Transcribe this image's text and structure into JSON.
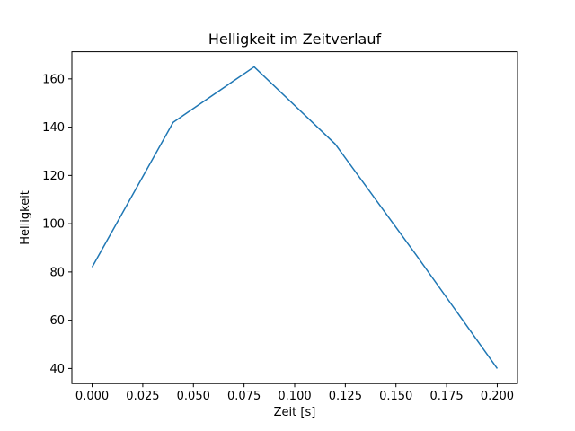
{
  "chart_data": {
    "type": "line",
    "title": "Helligkeit im Zeitverlauf",
    "xlabel": "Zeit [s]",
    "ylabel": "Helligkeit",
    "x": [
      0.0,
      0.04,
      0.08,
      0.12,
      0.16,
      0.2
    ],
    "series": [
      {
        "name": "Helligkeit",
        "values": [
          82,
          142,
          165,
          133,
          87,
          40
        ]
      }
    ],
    "xlim": [
      -0.01,
      0.21
    ],
    "ylim": [
      33.75,
      171.25
    ],
    "xticks": {
      "values": [
        0.0,
        0.025,
        0.05,
        0.075,
        0.1,
        0.125,
        0.15,
        0.175,
        0.2
      ],
      "labels": [
        "0.000",
        "0.025",
        "0.050",
        "0.075",
        "0.100",
        "0.125",
        "0.150",
        "0.175",
        "0.200"
      ]
    },
    "yticks": {
      "values": [
        40,
        60,
        80,
        100,
        120,
        140,
        160
      ],
      "labels": [
        "40",
        "60",
        "80",
        "100",
        "120",
        "140",
        "160"
      ]
    },
    "grid": false,
    "legend": "none",
    "line_color": "#1f77b4",
    "axis_color": "#000000",
    "background_color": "#ffffff"
  }
}
